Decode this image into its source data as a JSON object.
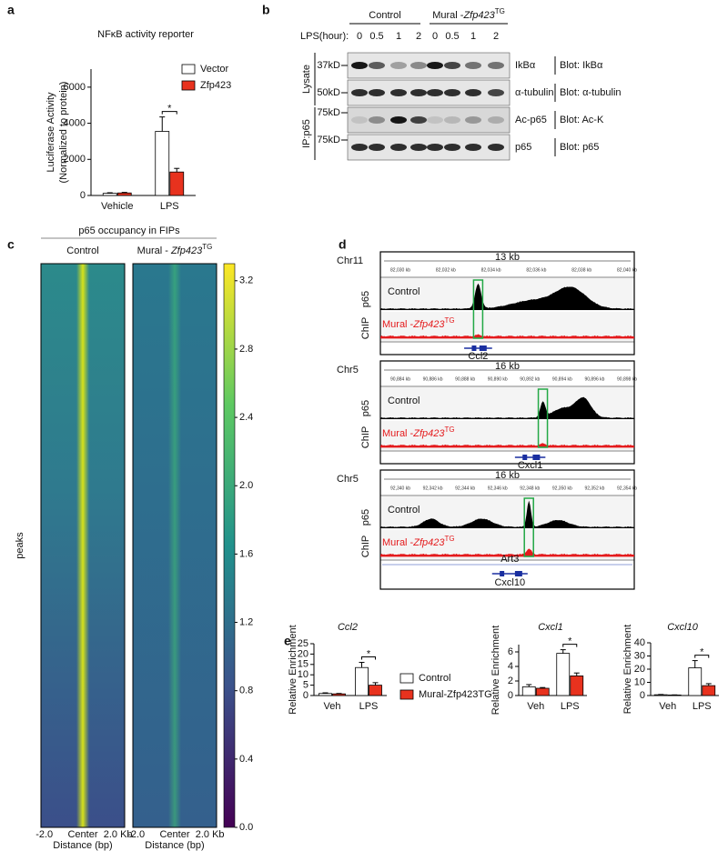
{
  "panel_labels": [
    "a",
    "b",
    "c",
    "d",
    "e"
  ],
  "chart_data": [
    {
      "type": "bar",
      "title": "NFκB activity reporter",
      "ylabel": [
        "Luciferase Activity",
        "(Normalized to protein)"
      ],
      "categories": [
        "Vehicle",
        "LPS"
      ],
      "series": [
        {
          "name": "Vector",
          "color": "#ffffff",
          "values": [
            120,
            3550
          ],
          "errors": [
            30,
            800
          ]
        },
        {
          "name": "Zfp423",
          "color": "#e8321e",
          "values": [
            140,
            1300
          ],
          "errors": [
            30,
            200
          ]
        }
      ],
      "ylim": [
        0,
        7000
      ],
      "yticks": [
        0,
        2000,
        4000,
        6000
      ],
      "significance": "*"
    },
    {
      "type": "heatmap",
      "title": "p65 occupancy in FIPs",
      "columns": [
        {
          "text": "Control"
        },
        {
          "text": "Mural - ",
          "gene": "Zfp423",
          "sup": "TG"
        }
      ],
      "xticks": [
        "-2.0",
        "Center",
        "2.0 Kb"
      ],
      "xlabel": "Distance (bp)",
      "ylabel": "peaks",
      "clim": [
        0,
        3.3
      ],
      "cticks": [
        {
          "value": 0,
          "label": "0.0"
        },
        0.4,
        0.8,
        1.2,
        1.6,
        {
          "value": 2,
          "label": "2.0"
        },
        2.4,
        2.8,
        3.2
      ],
      "colormap": [
        "#440154",
        "#3b528b",
        "#21918c",
        "#5ec962",
        "#fde725"
      ]
    },
    {
      "type": "bar",
      "title": "Ccl2",
      "ylabel": "Relative Enrichment",
      "categories": [
        "Veh",
        "LPS"
      ],
      "series": [
        {
          "name": "Control",
          "color": "#ffffff",
          "values": [
            1.0,
            13.5
          ],
          "errors": [
            0.3,
            2.5
          ]
        },
        {
          "name": "Mural-Zfp423TG",
          "color": "#e8321e",
          "values": [
            0.8,
            5.0
          ],
          "errors": [
            0.2,
            1.2
          ]
        }
      ],
      "ylim": [
        0,
        25
      ],
      "yticks": [
        0,
        5,
        10,
        15,
        20,
        25
      ],
      "significance": "*"
    },
    {
      "type": "bar",
      "title": "Cxcl1",
      "ylabel": "Relative Enrichment",
      "categories": [
        "Veh",
        "LPS"
      ],
      "series": [
        {
          "color": "#ffffff",
          "values": [
            1.2,
            5.8
          ],
          "errors": [
            0.3,
            0.5
          ]
        },
        {
          "color": "#e8321e",
          "values": [
            1.0,
            2.7
          ],
          "errors": [
            0.1,
            0.4
          ]
        }
      ],
      "ylim": [
        0,
        7
      ],
      "yticks": [
        0,
        2,
        4,
        6
      ],
      "significance": "*"
    },
    {
      "type": "bar",
      "title": "Cxcl10",
      "ylabel": "Relative Enrichment",
      "categories": [
        "Veh",
        "LPS"
      ],
      "series": [
        {
          "color": "#ffffff",
          "values": [
            0.6,
            21
          ],
          "errors": [
            0.2,
            5.5
          ]
        },
        {
          "color": "#e8321e",
          "values": [
            0.4,
            7.5
          ],
          "errors": [
            0.1,
            1.5
          ]
        }
      ],
      "ylim": [
        0,
        40
      ],
      "yticks": [
        0,
        10,
        20,
        30,
        40
      ],
      "significance": "*"
    }
  ],
  "blot": {
    "time_label": "LPS(hour):",
    "groups": [
      {
        "text": "Control"
      },
      {
        "text": "Mural -",
        "gene": "Zfp423",
        "sup": "TG"
      }
    ],
    "times": [
      "0",
      "0.5",
      "1",
      "2",
      "0",
      "0.5",
      "1",
      "2"
    ],
    "sections": [
      "Lysate",
      "IP:p65"
    ],
    "rows": [
      {
        "marker": "37kD",
        "band": "IkBα",
        "blot": "Blot: IkBα",
        "intensity": [
          0.9,
          0.6,
          0.3,
          0.4,
          0.9,
          0.7,
          0.5,
          0.5
        ]
      },
      {
        "marker": "50kD",
        "band": "α-tubulin",
        "blot": "Blot: α-tubulin",
        "intensity": [
          0.8,
          0.8,
          0.8,
          0.8,
          0.8,
          0.8,
          0.8,
          0.7
        ]
      },
      {
        "marker": "75kD",
        "band": "Ac-p65",
        "blot": "Blot: Ac-K",
        "intensity": [
          0.1,
          0.35,
          0.9,
          0.7,
          0.1,
          0.15,
          0.3,
          0.2
        ]
      },
      {
        "marker": "75kD",
        "band": "p65",
        "blot": "Blot: p65",
        "intensity": [
          0.8,
          0.8,
          0.8,
          0.8,
          0.8,
          0.8,
          0.8,
          0.8
        ]
      }
    ]
  },
  "tracks": {
    "experiment": "ChIP",
    "factor": "p65",
    "control": "Control",
    "tg": {
      "text": "Mural -",
      "gene": "Zfp423",
      "sup": "TG"
    },
    "loci": [
      {
        "chrom": "Chr11",
        "span": "13 kb",
        "coords": [
          "82,030 kb",
          "82,032 kb",
          "82,034 kb",
          "82,036 kb",
          "82,038 kb",
          "82,040 kb"
        ],
        "genes": [
          "Ccl2"
        ]
      },
      {
        "chrom": "Chr5",
        "span": "16 kb",
        "coords": [
          "90,884 kb",
          "90,886 kb",
          "90,888 kb",
          "90,890 kb",
          "90,892 kb",
          "90,894 kb",
          "90,896 kb",
          "90,898 kb"
        ],
        "genes": [
          "Cxcl1"
        ]
      },
      {
        "chrom": "Chr5",
        "span": "16 kb",
        "coords": [
          "92,340 kb",
          "92,342 kb",
          "92,344 kb",
          "92,346 kb",
          "92,348 kb",
          "92,350 kb",
          "92,352 kb",
          "92,354 kb"
        ],
        "genes": [
          "Art3",
          "Cxcl10"
        ]
      }
    ]
  }
}
